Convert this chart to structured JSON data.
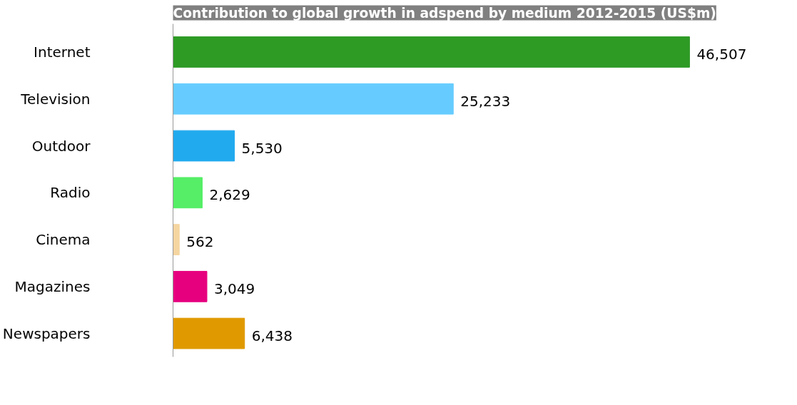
{
  "chart_data": {
    "type": "bar",
    "orientation": "horizontal",
    "title": "Contribution to global growth in adspend by medium 2012-2015 (US$m)",
    "categories": [
      "Internet",
      "Television",
      "Outdoor",
      "Radio",
      "Cinema",
      "Magazines",
      "Newspapers"
    ],
    "values": [
      46507,
      25233,
      5530,
      2629,
      562,
      3049,
      6438
    ],
    "value_labels": [
      "46,507",
      "25,233",
      "5,530",
      "2,629",
      "562",
      "3,049",
      "6,438"
    ],
    "colors": [
      "#2e9b25",
      "#66ccff",
      "#22aaee",
      "#55ee66",
      "#f5d5a0",
      "#e6007e",
      "#e09a00"
    ],
    "grid": false
  }
}
